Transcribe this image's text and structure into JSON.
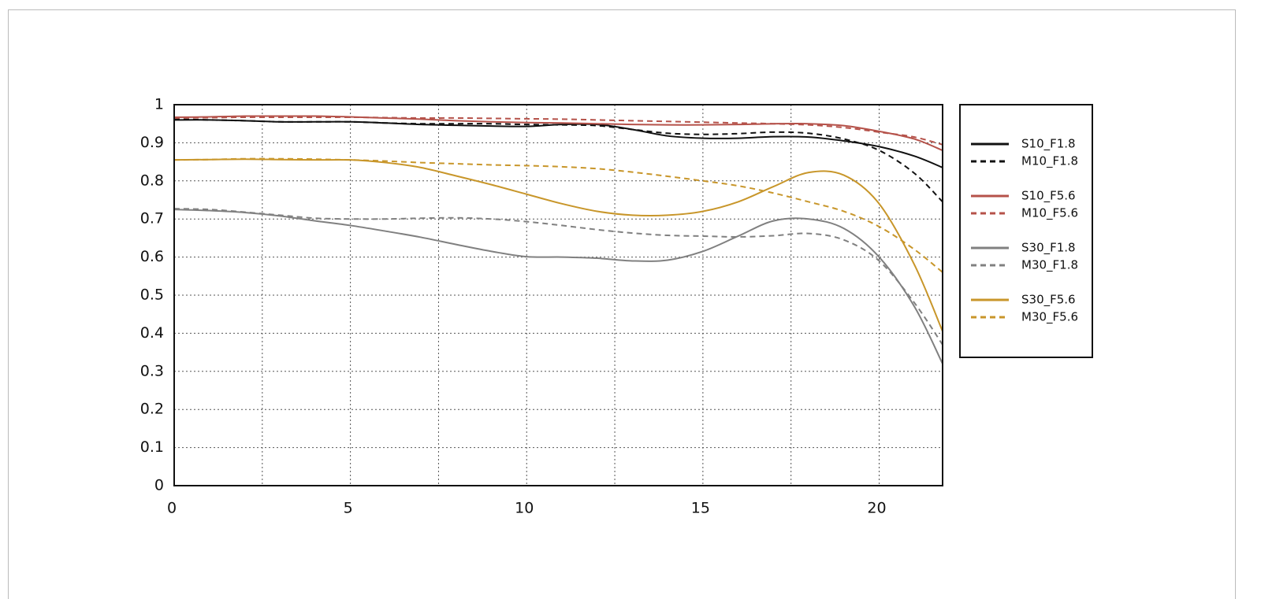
{
  "chart_data": {
    "type": "line",
    "x": [
      0,
      1,
      2,
      3,
      4,
      5,
      6,
      7,
      8,
      9,
      10,
      11,
      12,
      13,
      14,
      15,
      16,
      17,
      18,
      19,
      20,
      21,
      21.8
    ],
    "xlim": [
      0,
      21.8
    ],
    "xticks": [
      0,
      5,
      10,
      15,
      20
    ],
    "x_minor_grid": [
      2.5,
      7.5,
      12.5,
      17.5
    ],
    "ylim": [
      0,
      1
    ],
    "yticks": [
      0,
      0.1,
      0.2,
      0.3,
      0.4,
      0.5,
      0.6,
      0.7,
      0.8,
      0.9,
      1
    ],
    "grid": true,
    "legend": "right",
    "series": [
      {
        "name": "S10_F1.8",
        "color": "#111111",
        "style": "solid",
        "values": [
          0.96,
          0.96,
          0.958,
          0.955,
          0.955,
          0.955,
          0.952,
          0.948,
          0.946,
          0.944,
          0.943,
          0.948,
          0.948,
          0.935,
          0.918,
          0.912,
          0.912,
          0.916,
          0.915,
          0.905,
          0.89,
          0.865,
          0.835
        ]
      },
      {
        "name": "M10_F1.8",
        "color": "#111111",
        "style": "dashed",
        "values": [
          0.962,
          0.96,
          0.958,
          0.955,
          0.955,
          0.955,
          0.952,
          0.95,
          0.95,
          0.95,
          0.948,
          0.947,
          0.945,
          0.935,
          0.925,
          0.922,
          0.924,
          0.928,
          0.925,
          0.91,
          0.88,
          0.82,
          0.745
        ]
      },
      {
        "name": "S10_F5.6",
        "color": "#b5524a",
        "style": "solid",
        "values": [
          0.967,
          0.968,
          0.97,
          0.97,
          0.97,
          0.968,
          0.965,
          0.962,
          0.958,
          0.955,
          0.953,
          0.952,
          0.95,
          0.948,
          0.947,
          0.947,
          0.948,
          0.95,
          0.95,
          0.945,
          0.93,
          0.91,
          0.88
        ]
      },
      {
        "name": "M10_F5.6",
        "color": "#b5524a",
        "style": "dashed",
        "values": [
          0.965,
          0.966,
          0.967,
          0.967,
          0.967,
          0.967,
          0.966,
          0.965,
          0.965,
          0.964,
          0.963,
          0.962,
          0.96,
          0.958,
          0.956,
          0.954,
          0.952,
          0.95,
          0.947,
          0.94,
          0.928,
          0.915,
          0.895
        ]
      },
      {
        "name": "S30_F1.8",
        "color": "#808080",
        "style": "solid",
        "values": [
          0.725,
          0.722,
          0.717,
          0.708,
          0.695,
          0.683,
          0.668,
          0.652,
          0.633,
          0.615,
          0.601,
          0.6,
          0.597,
          0.59,
          0.592,
          0.615,
          0.655,
          0.695,
          0.7,
          0.675,
          0.6,
          0.47,
          0.32
        ]
      },
      {
        "name": "M30_F1.8",
        "color": "#808080",
        "style": "dashed",
        "values": [
          0.727,
          0.725,
          0.718,
          0.71,
          0.702,
          0.7,
          0.7,
          0.702,
          0.703,
          0.7,
          0.693,
          0.683,
          0.672,
          0.663,
          0.657,
          0.655,
          0.653,
          0.656,
          0.662,
          0.645,
          0.59,
          0.48,
          0.37
        ]
      },
      {
        "name": "S30_F5.6",
        "color": "#c8962a",
        "style": "solid",
        "values": [
          0.855,
          0.856,
          0.857,
          0.856,
          0.855,
          0.855,
          0.848,
          0.835,
          0.813,
          0.79,
          0.765,
          0.74,
          0.72,
          0.71,
          0.71,
          0.72,
          0.745,
          0.785,
          0.822,
          0.815,
          0.74,
          0.58,
          0.405
        ]
      },
      {
        "name": "M30_F5.6",
        "color": "#c8962a",
        "style": "dashed",
        "values": [
          0.855,
          0.856,
          0.858,
          0.858,
          0.857,
          0.855,
          0.852,
          0.848,
          0.845,
          0.842,
          0.84,
          0.837,
          0.832,
          0.823,
          0.812,
          0.8,
          0.787,
          0.768,
          0.745,
          0.72,
          0.68,
          0.62,
          0.56
        ]
      }
    ]
  }
}
